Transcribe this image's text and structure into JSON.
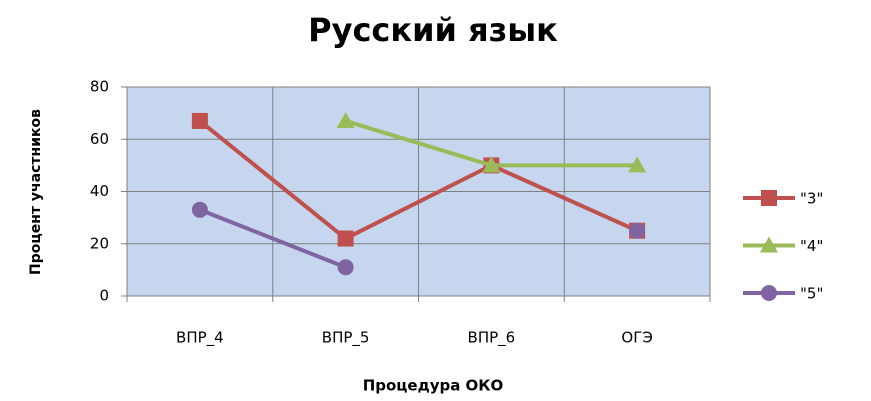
{
  "chart_data": {
    "type": "line",
    "title": "Русский язык",
    "x_label": "Процедура ОКО",
    "y_label": "Процент участников",
    "categories": [
      "ВПР_4",
      "ВПР_5",
      "ВПР_6",
      "ОГЭ"
    ],
    "series": [
      {
        "name": "\"3\"",
        "color": "#c0504d",
        "marker": "square",
        "values": [
          67,
          22,
          50,
          25
        ]
      },
      {
        "name": "\"4\"",
        "color": "#9bbb59",
        "marker": "triangle",
        "values": [
          null,
          67,
          50,
          50
        ]
      },
      {
        "name": "\"5\"",
        "color": "#8064a2",
        "marker": "circle",
        "values": [
          33,
          11,
          null,
          25
        ]
      }
    ],
    "ylim": [
      0,
      80
    ],
    "yticks": [
      0,
      20,
      40,
      60,
      80
    ],
    "grid": true,
    "legend": "right"
  }
}
